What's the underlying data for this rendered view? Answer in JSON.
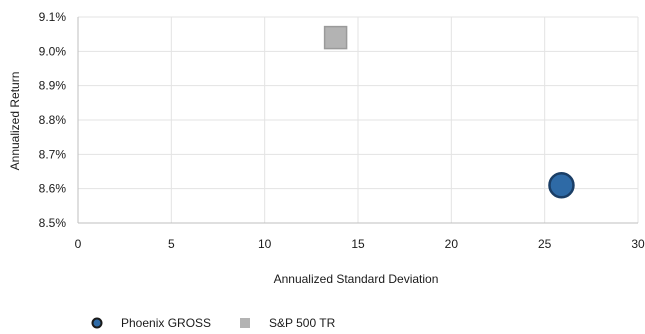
{
  "chart_data": {
    "type": "scatter",
    "xlabel": "Annualized Standard Deviation",
    "ylabel": "Annualized Return",
    "xlim": [
      0,
      30
    ],
    "ylim": [
      8.5,
      9.1
    ],
    "x_ticks": [
      0,
      5,
      10,
      15,
      20,
      25,
      30
    ],
    "y_ticks": [
      8.5,
      8.6,
      8.7,
      8.8,
      8.9,
      9.0,
      9.1
    ],
    "y_tick_format": "percent_1dp",
    "grid": true,
    "legend_position": "bottom-left",
    "series": [
      {
        "name": "Phoenix GROSS",
        "marker": "circle",
        "color": "#2e6aa6",
        "edge_color": "#1a3e66",
        "points": [
          {
            "x": 25.9,
            "y": 8.61
          }
        ]
      },
      {
        "name": "S&P 500 TR",
        "marker": "square",
        "color": "#b3b3b3",
        "edge_color": "#9a9a9a",
        "points": [
          {
            "x": 13.8,
            "y": 9.04
          }
        ]
      }
    ]
  }
}
